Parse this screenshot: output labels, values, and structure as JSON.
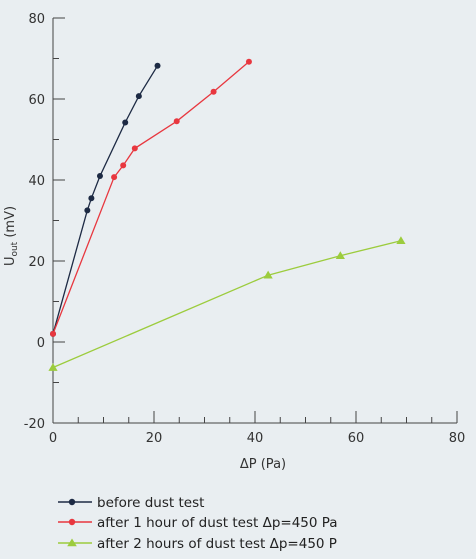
{
  "chart_data": {
    "type": "line",
    "xlabel": "ΔP (Pa)",
    "ylabel_main": "U",
    "ylabel_sub": "out",
    "ylabel_unit": " (mV)",
    "xlim": [
      0,
      80
    ],
    "ylim": [
      -20,
      80
    ],
    "x_ticks": [
      0,
      20,
      40,
      60,
      80
    ],
    "y_ticks": [
      -20,
      0,
      20,
      40,
      60,
      80
    ],
    "x_tick_labels": [
      "0",
      "20",
      "40",
      "60",
      "80"
    ],
    "y_tick_labels": [
      "-20",
      "0",
      "20",
      "40",
      "60",
      "80"
    ],
    "x_minor_step": 5,
    "y_minor_step": 10,
    "grid": false,
    "legend_placement": "bottom",
    "series": [
      {
        "name": "before dust test",
        "color": "#1d2a44",
        "marker": "circle",
        "points": [
          [
            0,
            2
          ],
          [
            6.8,
            32.5
          ],
          [
            7.6,
            35.5
          ],
          [
            9.3,
            41
          ],
          [
            14.3,
            54.2
          ],
          [
            17.0,
            60.7
          ],
          [
            20.7,
            68.2
          ]
        ]
      },
      {
        "name": "after 1 hour of dust test Δp=450 Pa",
        "color": "#e8373f",
        "marker": "circle",
        "points": [
          [
            0,
            2
          ],
          [
            12.1,
            40.7
          ],
          [
            13.9,
            43.6
          ],
          [
            16.2,
            47.8
          ],
          [
            24.5,
            54.5
          ],
          [
            31.8,
            61.8
          ],
          [
            38.8,
            69.2
          ]
        ]
      },
      {
        "name": "after 2 hours of dust test Δp=450 P",
        "color": "#9ccc3d",
        "marker": "triangle",
        "points": [
          [
            0,
            -6.3
          ],
          [
            42.6,
            16.5
          ],
          [
            56.9,
            21.3
          ],
          [
            68.9,
            25
          ]
        ]
      }
    ]
  }
}
